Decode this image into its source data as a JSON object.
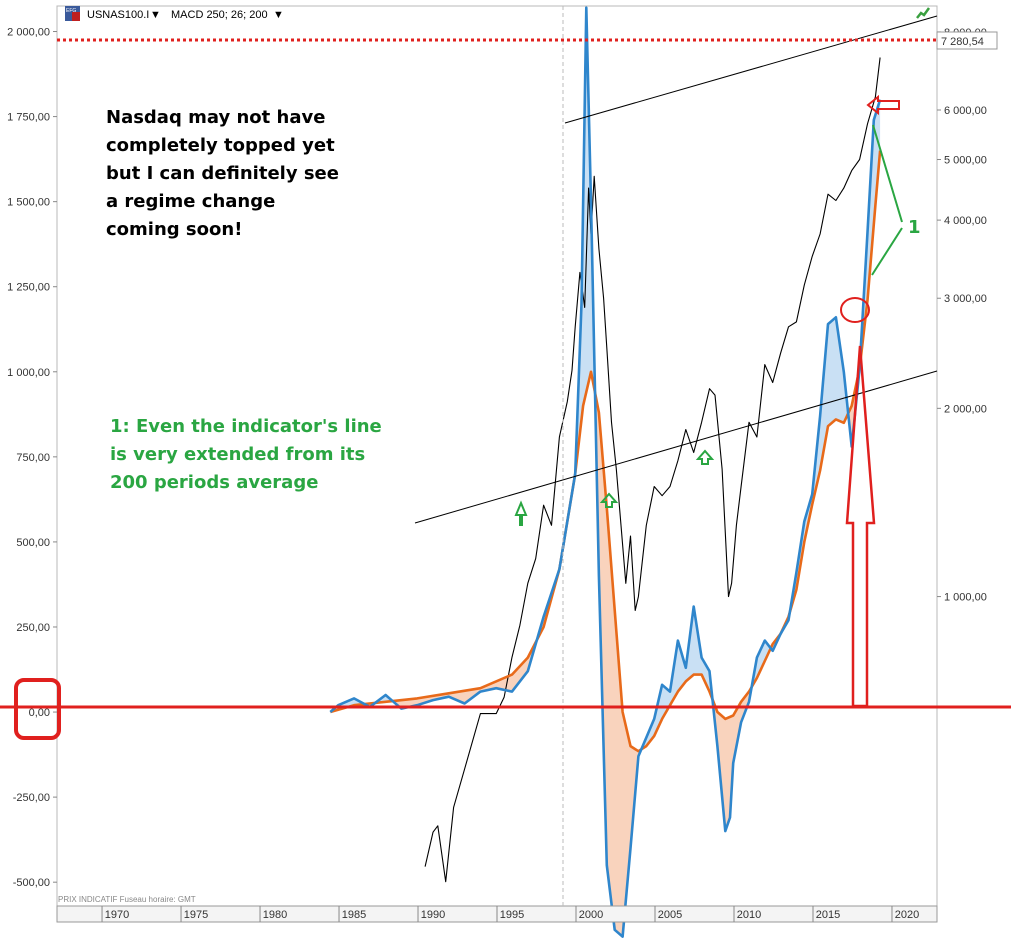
{
  "toolbar": {
    "symbol": "USNAS100.I",
    "indicator": "MACD 250; 26; 200",
    "dropdown_glyph": "▼",
    "logo_text": "EFG"
  },
  "footer": {
    "info": "PRIX INDICATIF   Fuseau horaire: GMT"
  },
  "annotations": {
    "main_note": [
      "Nasdaq may not have",
      "completely topped yet",
      "but I can definitely see",
      "a regime change",
      "coming soon!"
    ],
    "indicator_note": [
      "1: Even the indicator's line",
      "is very extended from its",
      "200 periods average"
    ],
    "marker_one": "1",
    "last_price": "7 280,54"
  },
  "colors": {
    "price": "#000000",
    "macd": "#2f86cc",
    "signal": "#e86a1a",
    "fill_above": "#c9e0f4",
    "fill_below": "#f9d3bd",
    "annotation_red": "#e0201e",
    "annotation_green": "#2aa642",
    "trend": "#000000"
  },
  "chart_data": {
    "type": "line",
    "title": "",
    "left_axis": {
      "ticks": [
        2000,
        1750,
        1500,
        1250,
        1000,
        750,
        500,
        250,
        0,
        -250,
        -500
      ],
      "tick_labels": [
        "2 000,00",
        "1 750,00",
        "1 500,00",
        "1 250,00",
        "1 000,00",
        "750,00",
        "500,00",
        "250,00",
        "0,00",
        "-250,00",
        "-500,00"
      ],
      "range": [
        -570,
        2075
      ]
    },
    "right_axis": {
      "scale": "log",
      "ticks": [
        8000,
        6000,
        5000,
        4000,
        3000,
        2000,
        1000
      ],
      "tick_labels": [
        "8 000,00",
        "6 000,00",
        "5 000,00",
        "4 000,00",
        "3 000,00",
        "2 000,00",
        "1 000,00"
      ],
      "range": [
        320,
        8800
      ]
    },
    "x_axis": {
      "ticks": [
        1970,
        1975,
        1980,
        1985,
        1990,
        1995,
        2000,
        2005,
        2010,
        2015,
        2020
      ],
      "range": [
        1966.2,
        2021.9
      ]
    },
    "series": [
      {
        "axis": "right",
        "x": [
          1989.5,
          1990.0,
          1990.3,
          1990.8,
          1991.3,
          1992.0,
          1993.0,
          1994.0,
          1994.5,
          1995.0,
          1995.5,
          1996.0,
          1996.5,
          1997.0,
          1997.5,
          1998.0,
          1998.5,
          1998.8,
          1999.0,
          1999.3,
          1999.6,
          1999.85,
          2000.0,
          2000.2,
          2000.5,
          2000.8,
          2001.0,
          2001.3,
          2001.6,
          2001.9,
          2002.2,
          2002.5,
          2002.8,
          2003.0,
          2003.5,
          2004.0,
          2004.5,
          2005.0,
          2005.5,
          2006.0,
          2006.5,
          2007.0,
          2007.5,
          2007.85,
          2008.3,
          2008.7,
          2008.9,
          2009.2,
          2009.5,
          2010.0,
          2010.5,
          2011.0,
          2011.5,
          2012.0,
          2012.5,
          2013.0,
          2013.5,
          2014.0,
          2014.5,
          2015.0,
          2015.5,
          2016.0,
          2016.5,
          2017.0,
          2017.5,
          2018.0,
          2018.3
        ],
        "values": [
          370,
          420,
          430,
          350,
          460,
          530,
          650,
          650,
          690,
          800,
          900,
          1050,
          1150,
          1400,
          1300,
          1800,
          2050,
          2300,
          2700,
          3300,
          2900,
          4500,
          3800,
          4700,
          3600,
          3000,
          2500,
          1900,
          1600,
          1300,
          1050,
          1250,
          950,
          1000,
          1300,
          1500,
          1450,
          1500,
          1650,
          1850,
          1700,
          1900,
          2150,
          2100,
          1600,
          1000,
          1050,
          1300,
          1500,
          1900,
          1800,
          2350,
          2200,
          2450,
          2700,
          2750,
          3150,
          3500,
          3800,
          4400,
          4300,
          4500,
          4800,
          5000,
          5700,
          6300,
          7280.54
        ]
      },
      {
        "axis": "left",
        "x": [
          1983.5,
          1984.0,
          1985.0,
          1986.0,
          1987.0,
          1987.5,
          1988.0,
          1989.0,
          1990.0,
          1991.0,
          1992.0,
          1993.0,
          1994.0,
          1995.0,
          1996.0,
          1997.0,
          1998.0,
          1999.0,
          1999.4,
          1999.7,
          2000.0,
          2000.5,
          2001.0,
          2001.5,
          2002.0,
          2002.5,
          2003.0,
          2004.0,
          2004.5,
          2005.0,
          2005.5,
          2006.0,
          2006.5,
          2007.0,
          2007.5,
          2008.0,
          2008.5,
          2008.8,
          2009.0,
          2009.5,
          2010.0,
          2010.5,
          2011.0,
          2011.5,
          2012.0,
          2012.5,
          2013.0,
          2013.5,
          2014.0,
          2014.5,
          2015.0,
          2015.5,
          2016.0,
          2016.5,
          2017.0,
          2017.5,
          2017.9,
          2018.3
        ],
        "values": [
          0,
          20,
          40,
          15,
          50,
          30,
          10,
          20,
          35,
          45,
          25,
          60,
          70,
          60,
          120,
          280,
          420,
          700,
          1200,
          2070,
          1500,
          400,
          -450,
          -640,
          -660,
          -400,
          -130,
          -20,
          80,
          60,
          210,
          130,
          310,
          160,
          120,
          -100,
          -350,
          -310,
          -150,
          -30,
          30,
          160,
          210,
          180,
          230,
          270,
          410,
          560,
          640,
          870,
          1140,
          1160,
          1000,
          780,
          1010,
          1410,
          1740,
          1800
        ]
      },
      {
        "axis": "left",
        "x": [
          1983.5,
          1985.0,
          1987.0,
          1989.0,
          1991.0,
          1993.0,
          1995.0,
          1996.0,
          1997.0,
          1998.0,
          1999.0,
          1999.5,
          2000.0,
          2000.5,
          2001.0,
          2001.5,
          2002.0,
          2002.5,
          2003.0,
          2003.5,
          2004.0,
          2004.5,
          2005.0,
          2005.5,
          2006.0,
          2006.5,
          2007.0,
          2007.5,
          2008.0,
          2008.5,
          2009.0,
          2009.5,
          2010.0,
          2010.5,
          2011.0,
          2011.5,
          2012.0,
          2012.5,
          2013.0,
          2013.5,
          2014.0,
          2014.5,
          2015.0,
          2015.5,
          2016.0,
          2016.5,
          2017.0,
          2017.5,
          2018.0,
          2018.3
        ],
        "values": [
          0,
          20,
          30,
          40,
          55,
          70,
          110,
          160,
          250,
          420,
          700,
          900,
          1000,
          880,
          600,
          300,
          0,
          -100,
          -115,
          -100,
          -70,
          -20,
          20,
          60,
          90,
          110,
          110,
          60,
          0,
          -20,
          -10,
          30,
          60,
          100,
          150,
          200,
          230,
          280,
          360,
          500,
          610,
          710,
          840,
          860,
          850,
          900,
          1010,
          1210,
          1490,
          1650
        ]
      }
    ]
  }
}
